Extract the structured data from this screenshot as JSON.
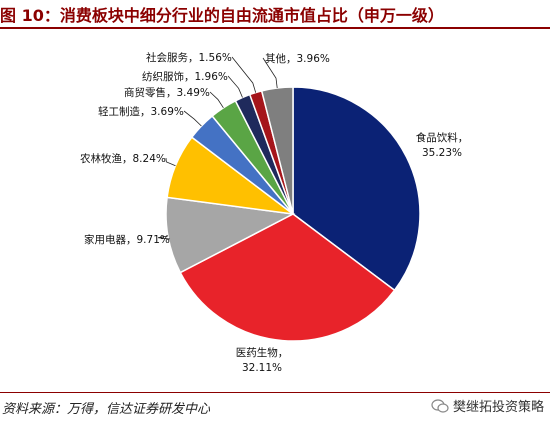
{
  "title": "图 10：消费板块中细分行业的自由流通市值占比（申万一级）",
  "source": "资料来源：万得，信达证券研发中心",
  "watermark": "樊继拓投资策略",
  "chart_data": {
    "type": "pie",
    "start_angle_deg": 90,
    "direction": "clockwise",
    "slices": [
      {
        "label": "食品饮料",
        "value": 35.23,
        "display": "35.23%",
        "color": "#0b2275"
      },
      {
        "label": "医药生物",
        "value": 32.11,
        "display": "32.11%",
        "color": "#e8232a"
      },
      {
        "label": "家用电器",
        "value": 9.71,
        "display": "9.71%",
        "color": "#a6a6a6"
      },
      {
        "label": "农林牧渔",
        "value": 8.24,
        "display": "8.24%",
        "color": "#ffc000"
      },
      {
        "label": "轻工制造",
        "value": 3.69,
        "display": "3.69%",
        "color": "#4472c4"
      },
      {
        "label": "商贸零售",
        "value": 3.49,
        "display": "3.49%",
        "color": "#5aa545"
      },
      {
        "label": "纺织服饰",
        "value": 1.96,
        "display": "1.96%",
        "color": "#1f2a5c"
      },
      {
        "label": "社会服务",
        "value": 1.56,
        "display": "1.56%",
        "color": "#a5151b"
      },
      {
        "label": "其他",
        "value": 3.96,
        "display": "3.96%",
        "color": "#7f7f7f"
      }
    ]
  }
}
